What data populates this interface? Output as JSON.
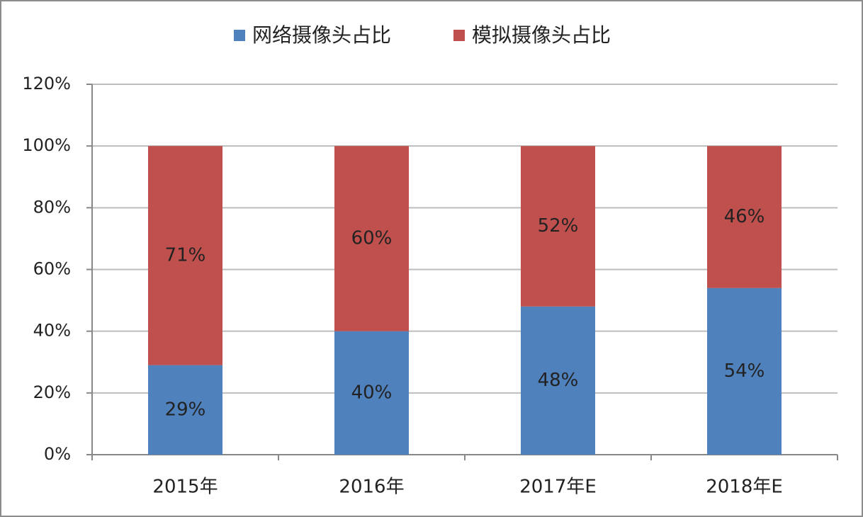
{
  "chart_data": {
    "type": "stacked_bar",
    "categories": [
      "2015年",
      "2016年",
      "2017年E",
      "2018年E"
    ],
    "series": [
      {
        "name": "网络摄像头占比",
        "color": "#4f81bd",
        "values": [
          29,
          40,
          48,
          54
        ],
        "value_labels": [
          "29%",
          "40%",
          "48%",
          "54%"
        ]
      },
      {
        "name": "模拟摄像头占比",
        "color": "#c0504d",
        "values": [
          71,
          60,
          52,
          46
        ],
        "value_labels": [
          "71%",
          "60%",
          "52%",
          "46%"
        ]
      }
    ],
    "ylim": [
      0,
      120
    ],
    "yticks": [
      {
        "value": 0,
        "label": "0%"
      },
      {
        "value": 20,
        "label": "20%"
      },
      {
        "value": 40,
        "label": "40%"
      },
      {
        "value": 60,
        "label": "60%"
      },
      {
        "value": 80,
        "label": "80%"
      },
      {
        "value": 100,
        "label": "100%"
      },
      {
        "value": 120,
        "label": "120%"
      }
    ],
    "grid": true,
    "legend": "top"
  }
}
